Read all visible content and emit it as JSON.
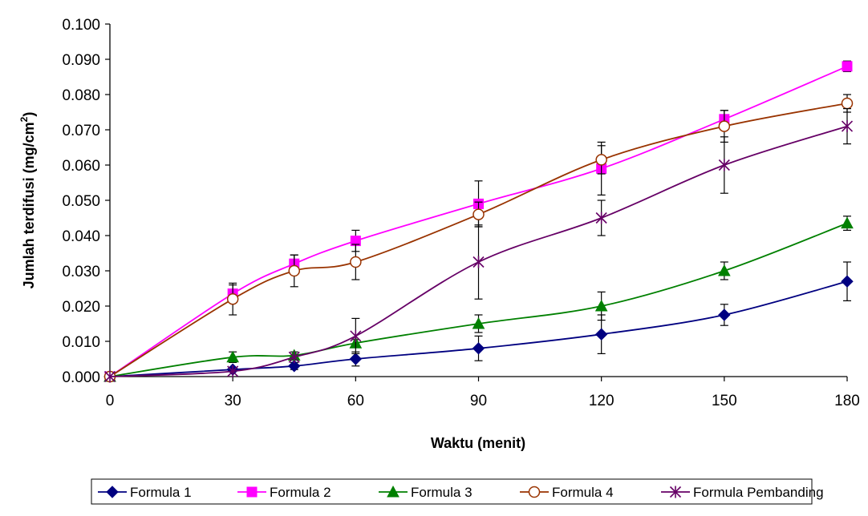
{
  "chart_data": {
    "type": "line",
    "xlabel": "Waktu (menit)",
    "ylabel": "Jumlah terdifusi (mg/cm",
    "ylabel_sup": "2",
    "ylabel_close": ")",
    "x": [
      0,
      30,
      45,
      60,
      90,
      120,
      150,
      180
    ],
    "xlim": [
      0,
      180
    ],
    "ylim": [
      0,
      0.1
    ],
    "xticks": [
      "0",
      "30",
      "60",
      "90",
      "120",
      "150",
      "180"
    ],
    "yticks": [
      "0.000",
      "0.010",
      "0.020",
      "0.030",
      "0.040",
      "0.050",
      "0.060",
      "0.070",
      "0.080",
      "0.090",
      "0.100"
    ],
    "grid": false,
    "legend_position": "bottom",
    "series": [
      {
        "name": "Formula 1",
        "color": "#000080",
        "marker": "diamond",
        "values": [
          0.0,
          0.002,
          0.003,
          0.005,
          0.008,
          0.012,
          0.0175,
          0.027
        ],
        "errors": [
          0.0,
          0.0,
          0.001,
          0.002,
          0.0035,
          0.0055,
          0.003,
          0.0055
        ]
      },
      {
        "name": "Formula 2",
        "color": "#FF00FF",
        "marker": "square",
        "values": [
          0.0,
          0.0235,
          0.032,
          0.0385,
          0.049,
          0.059,
          0.073,
          0.088
        ],
        "errors": [
          0.0,
          0.0025,
          0.0025,
          0.003,
          0.0065,
          0.0075,
          0.0025,
          0.0015
        ]
      },
      {
        "name": "Formula 3",
        "color": "#008000",
        "marker": "triangle",
        "values": [
          0.0,
          0.0055,
          0.006,
          0.0095,
          0.015,
          0.02,
          0.03,
          0.0435
        ],
        "errors": [
          0.0,
          0.0015,
          0.001,
          0.001,
          0.0025,
          0.004,
          0.0025,
          0.002
        ]
      },
      {
        "name": "Formula 4",
        "color": "#993300",
        "marker": "circle",
        "values": [
          0.0,
          0.022,
          0.03,
          0.0325,
          0.046,
          0.0615,
          0.071,
          0.0775
        ],
        "errors": [
          0.0,
          0.0045,
          0.0045,
          0.005,
          0.0035,
          0.004,
          0.0045,
          0.0025
        ]
      },
      {
        "name": "Formula Pembanding",
        "color": "#660066",
        "marker": "star",
        "values": [
          0.0,
          0.0015,
          0.0055,
          0.0115,
          0.0325,
          0.045,
          0.06,
          0.071
        ],
        "errors": [
          0.0,
          0.0,
          0.0,
          0.005,
          0.0105,
          0.005,
          0.008,
          0.005
        ]
      }
    ]
  }
}
